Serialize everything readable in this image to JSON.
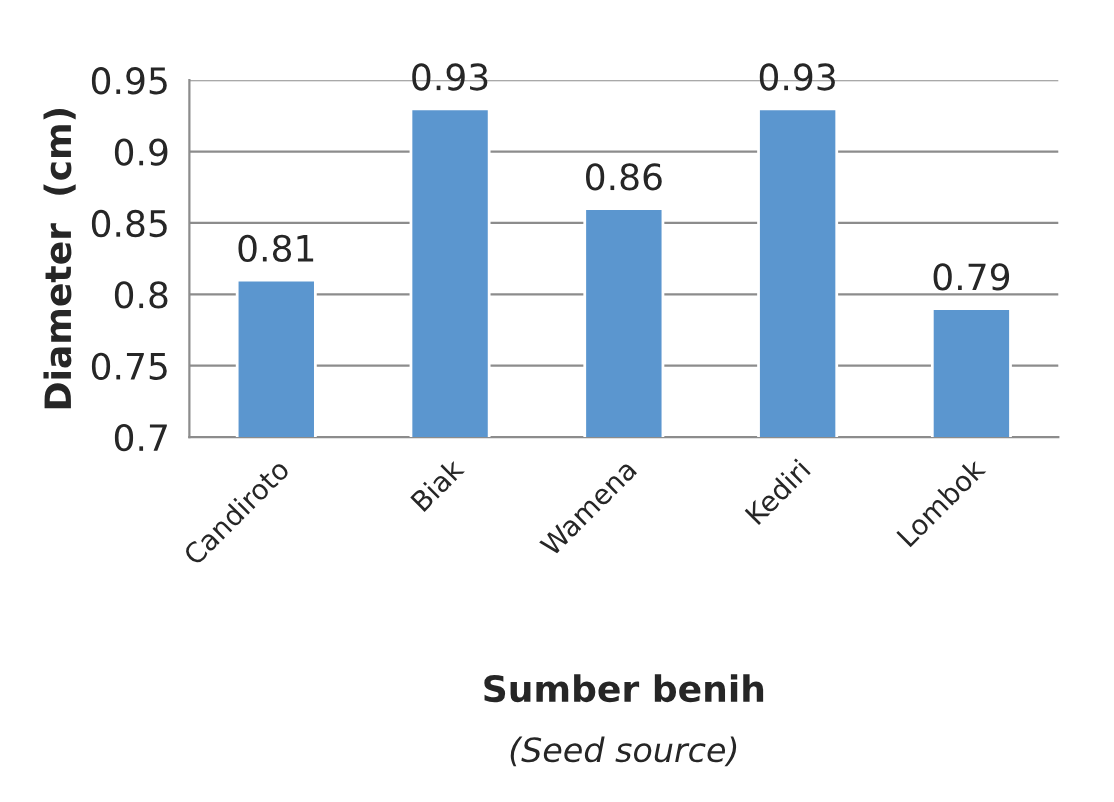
{
  "chart_data": {
    "type": "bar",
    "ylabel": "Diameter  (cm)",
    "xlabel": "Sumber benih\n(Seed source)",
    "categories": [
      "Candiroto",
      "Biak",
      "Wamena",
      "Kediri",
      "Lombok"
    ],
    "values": [
      0.81,
      0.93,
      0.86,
      0.93,
      0.79
    ],
    "color": "#5b96cf",
    "ylim": [
      0.7,
      0.95
    ],
    "yticks": [
      0.7,
      0.75,
      0.8,
      0.85,
      0.9,
      0.95
    ],
    "grid": "y",
    "data_labels": true
  }
}
